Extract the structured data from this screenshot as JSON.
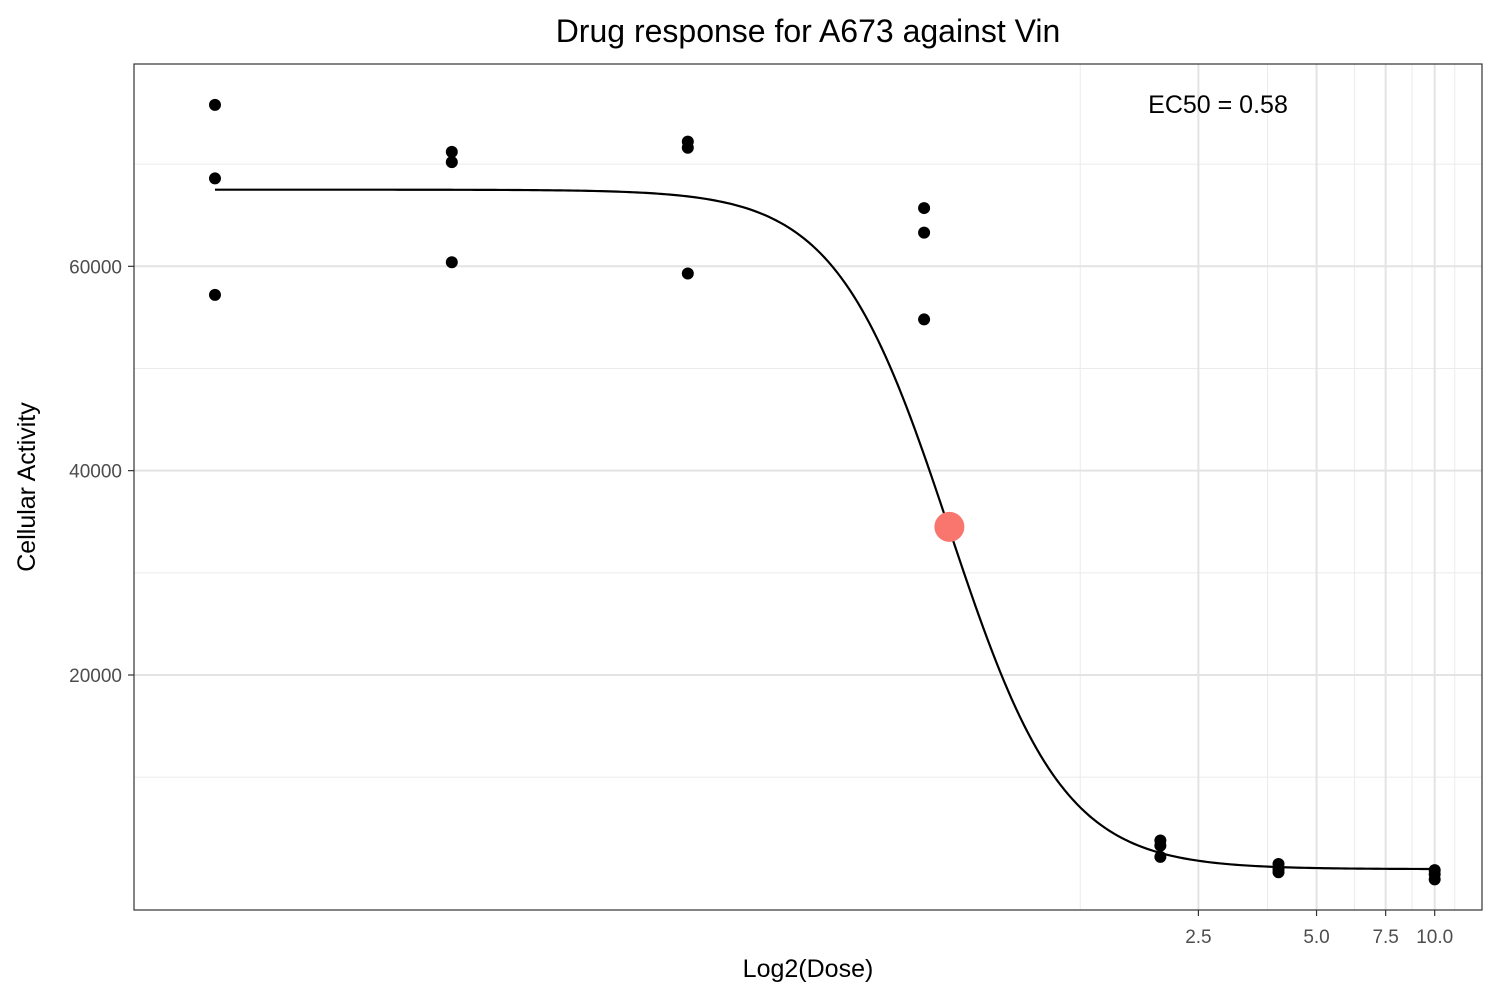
{
  "chart_data": {
    "type": "scatter",
    "title": "Drug response for A673 against Vin",
    "xlabel": "Log2(Dose)",
    "ylabel": "Cellular Activity",
    "x_scale": "log2",
    "x_ticks": [
      2.5,
      5.0,
      7.5,
      10.0
    ],
    "x_tick_labels": [
      "2.5",
      "5.0",
      "7.5",
      "10.0"
    ],
    "y_ticks": [
      20000,
      40000,
      60000
    ],
    "y_tick_labels": [
      "20000",
      "40000",
      "60000"
    ],
    "xlim": [
      0.00485,
      13.2
    ],
    "ylim": [
      -3000,
      79800
    ],
    "grid": true,
    "points_color": "#000000",
    "series": [
      {
        "type": "points",
        "points": [
          {
            "x": 0.0078,
            "y": 75800
          },
          {
            "x": 0.0078,
            "y": 68600
          },
          {
            "x": 0.0078,
            "y": 57200
          },
          {
            "x": 0.0313,
            "y": 71200
          },
          {
            "x": 0.0313,
            "y": 70200
          },
          {
            "x": 0.0313,
            "y": 60400
          },
          {
            "x": 0.125,
            "y": 72200
          },
          {
            "x": 0.125,
            "y": 71600
          },
          {
            "x": 0.125,
            "y": 59300
          },
          {
            "x": 0.5,
            "y": 65700
          },
          {
            "x": 0.5,
            "y": 63300
          },
          {
            "x": 0.5,
            "y": 54800
          },
          {
            "x": 2.0,
            "y": 3800
          },
          {
            "x": 2.0,
            "y": 3300
          },
          {
            "x": 2.0,
            "y": 2200
          },
          {
            "x": 4.0,
            "y": 1500
          },
          {
            "x": 4.0,
            "y": 1000
          },
          {
            "x": 4.0,
            "y": 700
          },
          {
            "x": 10.0,
            "y": 900
          },
          {
            "x": 10.0,
            "y": 500
          },
          {
            "x": 10.0,
            "y": 0
          }
        ]
      },
      {
        "type": "fit-curve",
        "color": "#000000",
        "top": 67500,
        "bottom": 1000,
        "ec50": 0.58,
        "hill_slope": 3.0
      },
      {
        "type": "ec50-marker",
        "color": "#f8766d",
        "x": 0.58,
        "y": 34500
      }
    ],
    "annotations": [
      {
        "text": "EC50 = 0.58"
      }
    ]
  }
}
